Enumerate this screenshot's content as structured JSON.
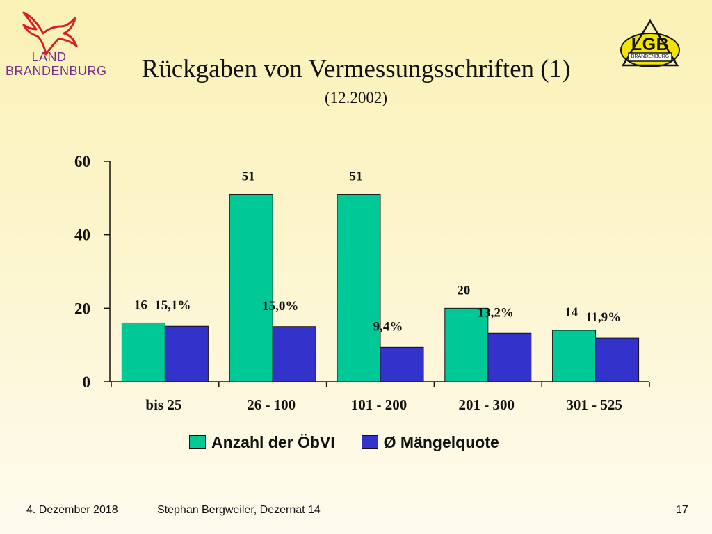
{
  "logos": {
    "left": {
      "line1": "LAND",
      "line2": "BRANDENBURG"
    },
    "right": {
      "main": "LGB",
      "sub": "BRANDENBURG"
    }
  },
  "slide": {
    "title": "Rückgaben von Vermessungsschriften (1)",
    "subtitle": "(12.2002)"
  },
  "legend": [
    {
      "label": "Anzahl der ÖbVI",
      "color": "#00c896"
    },
    {
      "label": "Ø Mängelquote",
      "color": "#3333cc"
    }
  ],
  "chart_data": {
    "type": "bar",
    "categories": [
      "bis 25",
      "26 - 100",
      "101 - 200",
      "201 - 300",
      "301 - 525"
    ],
    "series": [
      {
        "name": "Anzahl der ÖbVI",
        "values": [
          16,
          51,
          51,
          20,
          14
        ],
        "labels": [
          "16",
          "51",
          "51",
          "20",
          "14"
        ],
        "color": "#00c896"
      },
      {
        "name": "Ø Mängelquote",
        "values": [
          15.1,
          15.0,
          9.4,
          13.2,
          11.9
        ],
        "labels": [
          "15,1%",
          "15,0%",
          "9,4%",
          "13,2%",
          "11,9%"
        ],
        "color": "#3333cc"
      }
    ],
    "ylim": [
      0,
      60
    ],
    "yticks": [
      0,
      20,
      40,
      60
    ],
    "grid": false,
    "legend_position": "bottom"
  },
  "footer": {
    "date": "4. Dezember 2018",
    "author": "Stephan Bergweiler, Dezernat 14",
    "page": "17"
  }
}
